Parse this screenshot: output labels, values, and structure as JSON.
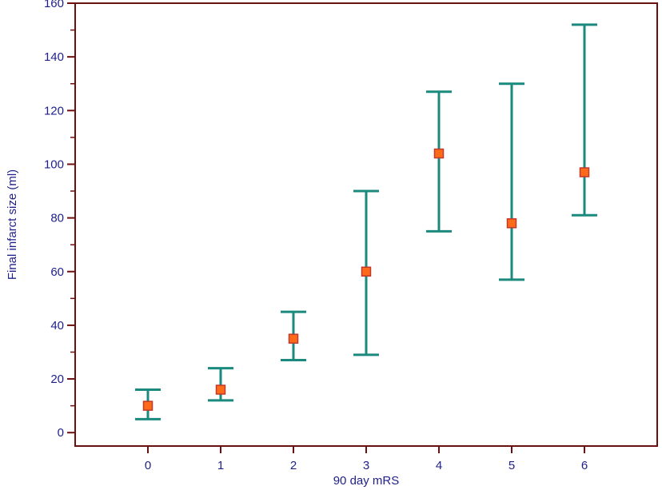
{
  "chart_data": {
    "type": "scatter",
    "title": "",
    "xlabel": "90 day mRS",
    "ylabel": "Final infarct size (ml)",
    "x_ticks": [
      "0",
      "1",
      "2",
      "3",
      "4",
      "5",
      "6"
    ],
    "y_ticks": [
      "0",
      "20",
      "40",
      "60",
      "80",
      "100",
      "120",
      "140",
      "160"
    ],
    "xlim": [
      -1,
      7
    ],
    "ylim": [
      -5,
      160
    ],
    "grid": false,
    "legend": "none",
    "points": [
      {
        "x": 0,
        "y": 10,
        "low": 5,
        "high": 16
      },
      {
        "x": 1,
        "y": 16,
        "low": 12,
        "high": 24
      },
      {
        "x": 2,
        "y": 35,
        "low": 27,
        "high": 45
      },
      {
        "x": 3,
        "y": 60,
        "low": 29,
        "high": 90
      },
      {
        "x": 4,
        "y": 104,
        "low": 75,
        "high": 127
      },
      {
        "x": 5,
        "y": 78,
        "low": 57,
        "high": 130
      },
      {
        "x": 6,
        "y": 97,
        "low": 81,
        "high": 152
      }
    ],
    "colors": {
      "frame": "#6b0f0f",
      "text": "#1f1f8a",
      "error_bar": "#1b8a7e",
      "marker_fill": "#ff6a1a",
      "marker_stroke": "#c0392b"
    }
  }
}
